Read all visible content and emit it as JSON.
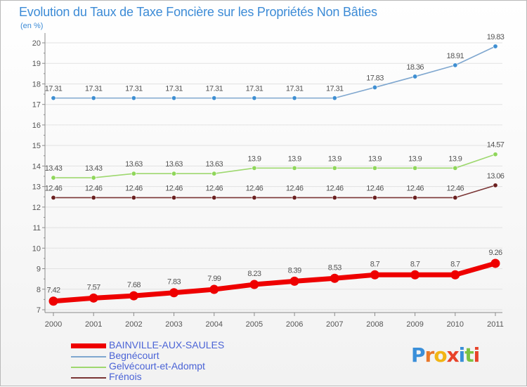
{
  "chart_data": {
    "type": "line",
    "title": "Evolution du Taux de Taxe Foncière sur les Propriétés Non Bâties",
    "ylabel": "(en %)",
    "xlabel": "",
    "x": [
      "2000",
      "2001",
      "2002",
      "2003",
      "2004",
      "2005",
      "2006",
      "2007",
      "2008",
      "2009",
      "2010",
      "2011"
    ],
    "ylim": [
      7,
      20
    ],
    "yticks": [
      "7",
      "8",
      "9",
      "10",
      "11",
      "12",
      "13",
      "14",
      "15",
      "16",
      "17",
      "18",
      "19",
      "20"
    ],
    "series": [
      {
        "name": "Begnécourt",
        "color": "#7fa7cf",
        "marker": "#3f8fd2",
        "values": [
          17.31,
          17.31,
          17.31,
          17.31,
          17.31,
          17.31,
          17.31,
          17.31,
          17.83,
          18.36,
          18.91,
          19.83
        ],
        "labels": [
          "17.31",
          "17.31",
          "17.31",
          "17.31",
          "17.31",
          "17.31",
          "17.31",
          "17.31",
          "17.83",
          "18.36",
          "18.91",
          "19.83"
        ]
      },
      {
        "name": "Gelvécourt-et-Adompt",
        "color": "#9ed86f",
        "marker": "#8fd65a",
        "values": [
          13.43,
          13.43,
          13.63,
          13.63,
          13.63,
          13.9,
          13.9,
          13.9,
          13.9,
          13.9,
          13.9,
          14.57
        ],
        "labels": [
          "13.43",
          "13.43",
          "13.63",
          "13.63",
          "13.63",
          "13.9",
          "13.9",
          "13.9",
          "13.9",
          "13.9",
          "13.9",
          "14.57"
        ]
      },
      {
        "name": "Frénois",
        "color": "#7a3535",
        "marker": "#6b2020",
        "values": [
          12.46,
          12.46,
          12.46,
          12.46,
          12.46,
          12.46,
          12.46,
          12.46,
          12.46,
          12.46,
          12.46,
          13.06
        ],
        "labels": [
          "12.46",
          "12.46",
          "12.46",
          "12.46",
          "12.46",
          "12.46",
          "12.46",
          "12.46",
          "12.46",
          "12.46",
          "12.46",
          "13.06"
        ]
      },
      {
        "name": "BAINVILLE-AUX-SAULES",
        "color": "#ee0000",
        "marker": "#ee0000",
        "bold": true,
        "values": [
          7.42,
          7.57,
          7.68,
          7.83,
          7.99,
          8.23,
          8.39,
          8.53,
          8.7,
          8.7,
          8.7,
          9.26
        ],
        "labels": [
          "7.42",
          "7.57",
          "7.68",
          "7.83",
          "7.99",
          "8.23",
          "8.39",
          "8.53",
          "8.7",
          "8.7",
          "8.7",
          "9.26"
        ]
      }
    ]
  },
  "legend": [
    {
      "name": "BAINVILLE-AUX-SAULES",
      "color": "#ee0000"
    },
    {
      "name": "Begnécourt",
      "color": "#7fa7cf"
    },
    {
      "name": "Gelvécourt-et-Adompt",
      "color": "#9ed86f"
    },
    {
      "name": "Frénois",
      "color": "#7a3535"
    }
  ],
  "logo": {
    "letters": [
      "P",
      "r",
      "o",
      "x",
      "i",
      "t",
      "i"
    ],
    "colors": [
      "#3a8fd9",
      "#e8772a",
      "#f2b515",
      "#e8432a",
      "#3a8fd9",
      "#7cc242",
      "#e8432a"
    ]
  }
}
